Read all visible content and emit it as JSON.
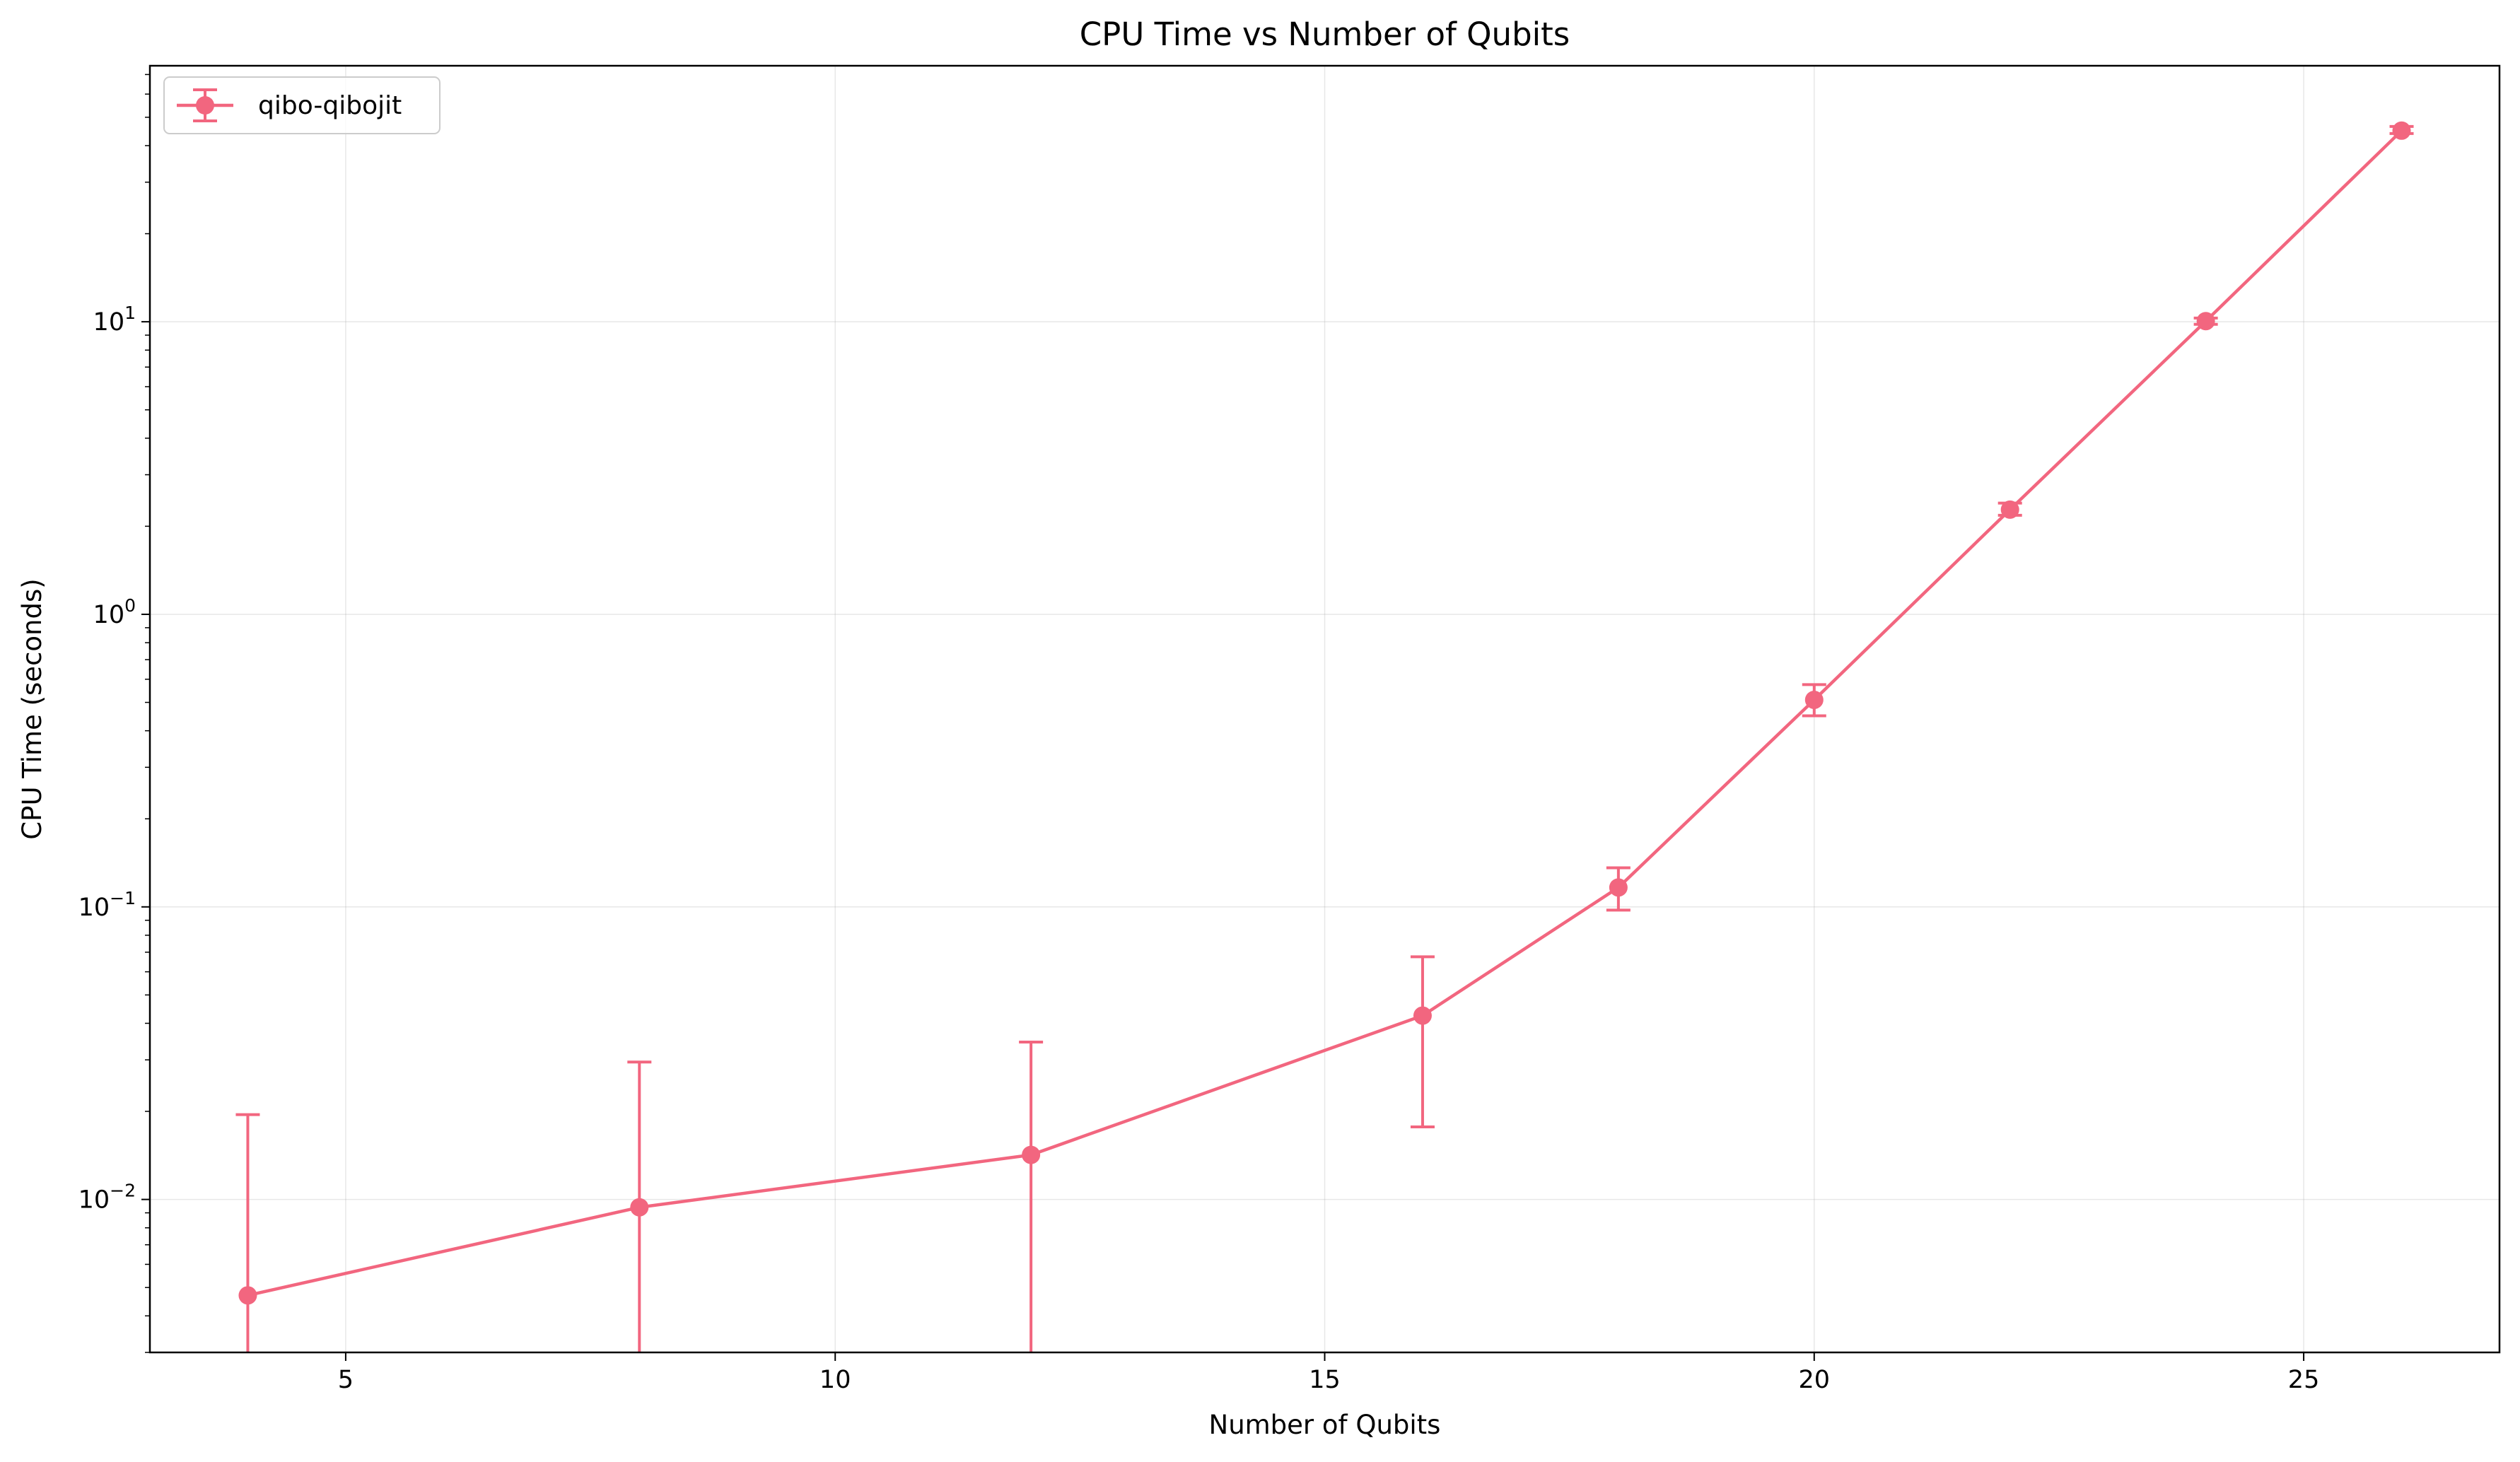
{
  "chart_data": {
    "type": "line",
    "title": "CPU Time vs Number of Qubits",
    "xlabel": "Number of Qubits",
    "ylabel": "CPU Time (seconds)",
    "xlim": [
      3,
      27
    ],
    "ylim": [
      0.003,
      75
    ],
    "yscale": "log",
    "grid": true,
    "legend_position": "top-left",
    "x_ticks": [
      5,
      10,
      15,
      20,
      25
    ],
    "x_tick_labels": [
      "5",
      "10",
      "15",
      "20",
      "25"
    ],
    "y_ticks": [
      0.01,
      0.1,
      1,
      10
    ],
    "y_tick_labels": [
      {
        "base": "10",
        "exp": "−2"
      },
      {
        "base": "10",
        "exp": "−1"
      },
      {
        "base": "10",
        "exp": "0"
      },
      {
        "base": "10",
        "exp": "1"
      }
    ],
    "series": [
      {
        "name": "qibo-qibojit",
        "color": "#f2667f",
        "x": [
          4,
          8,
          12,
          16,
          18,
          20,
          22,
          24,
          26
        ],
        "y": [
          0.0047,
          0.0094,
          0.0142,
          0.0425,
          0.1165,
          0.51,
          2.28,
          10.05,
          45.0
        ],
        "err_low": [
          0.0002,
          0.0004,
          0.0011,
          0.0177,
          0.0975,
          0.45,
          2.18,
          9.8,
          44.0
        ],
        "err_high": [
          0.0195,
          0.0295,
          0.0345,
          0.0675,
          0.136,
          0.575,
          2.4,
          10.3,
          46.5
        ]
      }
    ]
  }
}
